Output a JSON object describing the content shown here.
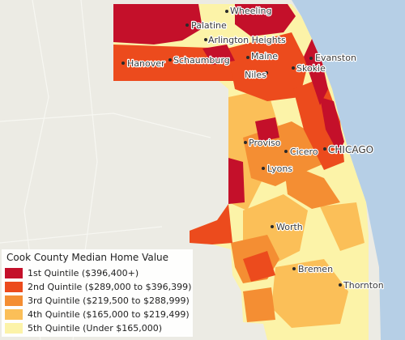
{
  "colors": {
    "background": "#ecebe4",
    "water": "#b6cfe6",
    "q1": "#c4102a",
    "q2": "#ec4b1d",
    "q3": "#f48e33",
    "q4": "#fbbf58",
    "q5": "#fcf3a8"
  },
  "places": {
    "wheeling": "Wheeling",
    "palatine": "Palatine",
    "arlington_heights": "Arlington Heights",
    "maine": "Maine",
    "evanston": "Evanston",
    "hanover": "Hanover",
    "schaumburg": "Schaumburg",
    "skokie": "Skokie",
    "niles": "Niles",
    "proviso": "Proviso",
    "cicero": "Cicero",
    "chicago": "CHICAGO",
    "lyons": "Lyons",
    "worth": "Worth",
    "bremen": "Bremen",
    "thornton": "Thornton"
  },
  "legend": {
    "title": "Cook County Median Home Value",
    "items": [
      {
        "label": "1st Quintile ($396,400+)",
        "color": "#c4102a"
      },
      {
        "label": "2nd Quintile ($289,000 to $396,399)",
        "color": "#ec4b1d"
      },
      {
        "label": "3rd Quintile ($219,500 to $288,999)",
        "color": "#f48e33"
      },
      {
        "label": "4th Quintile ($165,000 to $219,499)",
        "color": "#fbbf58"
      },
      {
        "label": "5th Quintile (Under $165,000)",
        "color": "#fcf3a8"
      }
    ]
  }
}
